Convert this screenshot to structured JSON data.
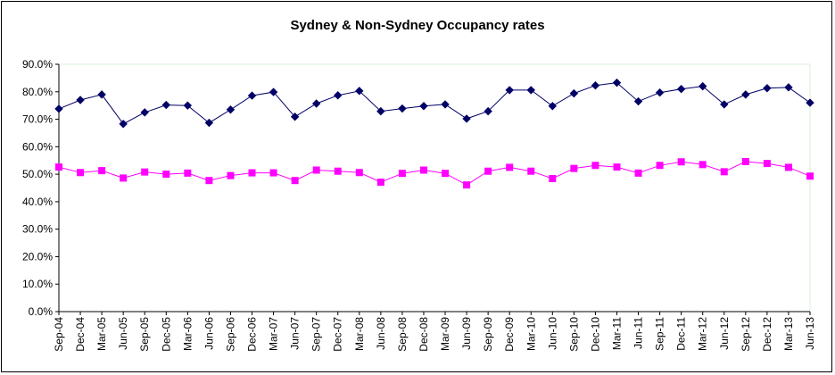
{
  "chart_data": {
    "type": "line",
    "title": "Sydney & Non-Sydney Occupancy rates",
    "xlabel": "",
    "ylabel": "",
    "ylim": [
      0,
      90
    ],
    "yticks": [
      "0.0%",
      "10.0%",
      "20.0%",
      "30.0%",
      "40.0%",
      "50.0%",
      "60.0%",
      "70.0%",
      "80.0%",
      "90.0%"
    ],
    "grid": false,
    "legend": "none",
    "categories": [
      "Sep-04",
      "Dec-04",
      "Mar-05",
      "Jun-05",
      "Sep-05",
      "Dec-05",
      "Mar-06",
      "Jun-06",
      "Sep-06",
      "Dec-06",
      "Mar-07",
      "Jun-07",
      "Sep-07",
      "Dec-07",
      "Mar-08",
      "Jun-08",
      "Sep-08",
      "Dec-08",
      "Mar-09",
      "Jun-09",
      "Sep-09",
      "Dec-09",
      "Mar-10",
      "Jun-10",
      "Sep-10",
      "Dec-10",
      "Mar-11",
      "Jun-11",
      "Sep-11",
      "Dec-11",
      "Mar-12",
      "Jun-12",
      "Sep-12",
      "Dec-12",
      "Mar-13",
      "Jun-13"
    ],
    "series": [
      {
        "color": "#000066",
        "marker": "diamond",
        "values": [
          73.8,
          77.0,
          79.0,
          68.3,
          72.5,
          75.2,
          75.0,
          68.7,
          73.5,
          78.6,
          79.9,
          70.9,
          75.7,
          78.7,
          80.3,
          72.9,
          73.9,
          74.8,
          75.4,
          70.2,
          72.9,
          80.6,
          80.6,
          74.8,
          79.4,
          82.3,
          83.3,
          76.5,
          79.7,
          81.0,
          82.0,
          75.4,
          79.0,
          81.3,
          81.6,
          76.0
        ]
      },
      {
        "color": "#ff00ff",
        "marker": "square",
        "values": [
          52.6,
          50.6,
          51.3,
          48.6,
          50.8,
          50.0,
          50.4,
          47.7,
          49.5,
          50.5,
          50.5,
          47.7,
          51.5,
          51.1,
          50.6,
          47.1,
          50.3,
          51.5,
          50.3,
          46.1,
          51.1,
          52.5,
          51.1,
          48.4,
          52.1,
          53.2,
          52.6,
          50.4,
          53.2,
          54.5,
          53.5,
          50.9,
          54.6,
          53.9,
          52.5,
          49.3
        ]
      }
    ]
  }
}
